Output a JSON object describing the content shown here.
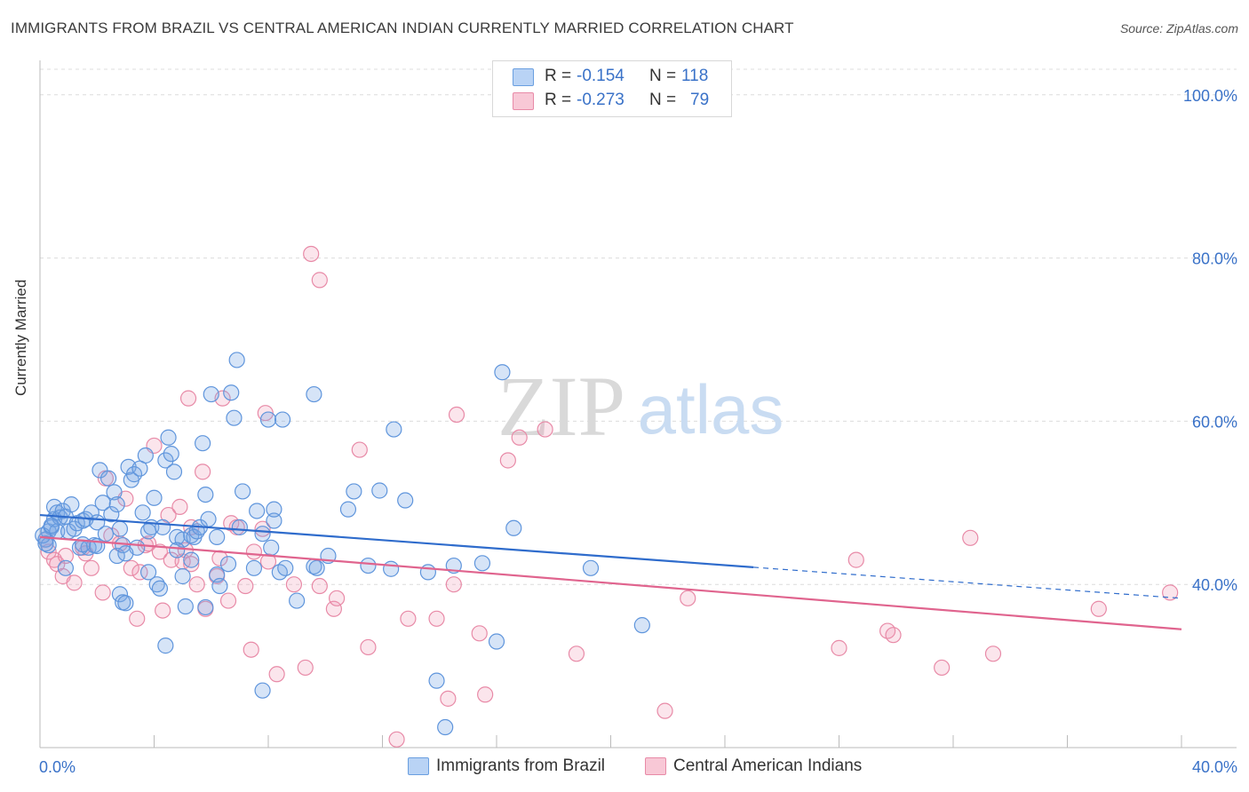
{
  "header": {
    "title": "IMMIGRANTS FROM BRAZIL VS CENTRAL AMERICAN INDIAN CURRENTLY MARRIED CORRELATION CHART",
    "source": "Source: ZipAtlas.com"
  },
  "watermark": {
    "zip": "ZIP",
    "atlas": "atlas"
  },
  "stats_box": {
    "rows": [
      {
        "r_label": "R =",
        "r_value": "-0.154",
        "n_label": "N =",
        "n_value": "118",
        "color": "#6a9fe0"
      },
      {
        "r_label": "R =",
        "r_value": "-0.273",
        "n_label": "N =",
        "n_value": "79",
        "color": "#e88aa7"
      }
    ]
  },
  "legend": {
    "items": [
      {
        "label": "Immigrants from Brazil",
        "color": "#6a9fe0"
      },
      {
        "label": "Central American Indians",
        "color": "#e88aa7"
      }
    ]
  },
  "colors": {
    "blue_point_fill": "rgba(120,165,230,0.30)",
    "blue_point_stroke": "#5f95dc",
    "blue_line": "#2f6ccc",
    "pink_point_fill": "rgba(240,150,180,0.25)",
    "pink_point_stroke": "#e88aa7",
    "pink_line": "#e0648e",
    "tick_label": "#3a72c8",
    "grid": "#dcdcdc"
  },
  "chart_data": {
    "type": "scatter",
    "title": "IMMIGRANTS FROM BRAZIL VS CENTRAL AMERICAN INDIAN CURRENTLY MARRIED CORRELATION CHART",
    "xlabel": "",
    "ylabel": "Currently Married",
    "xlim": [
      0,
      40
    ],
    "ylim": [
      20,
      104
    ],
    "x_tick_labels": [
      "0.0%",
      "40.0%"
    ],
    "y_ticks": [
      40,
      60,
      80,
      100
    ],
    "y_tick_labels": [
      "40.0%",
      "60.0%",
      "80.0%",
      "100.0%"
    ],
    "grid": "horizontal dashed",
    "legend_position": "bottom-center",
    "series": [
      {
        "name": "Immigrants from Brazil",
        "r": -0.154,
        "n": 118,
        "trend": {
          "x_start": 0,
          "y_start": 48.5,
          "x_end_solid": 25,
          "y_end_solid": 42.1,
          "x_end": 40,
          "y_end": 38.3
        },
        "points": [
          [
            0.2,
            45.5
          ],
          [
            0.3,
            46.5
          ],
          [
            0.3,
            44.8
          ],
          [
            0.4,
            47.0
          ],
          [
            0.5,
            49.5
          ],
          [
            0.5,
            48.0
          ],
          [
            0.6,
            48.8
          ],
          [
            0.6,
            46.5
          ],
          [
            0.7,
            48.2
          ],
          [
            0.8,
            49.0
          ],
          [
            0.9,
            48.3
          ],
          [
            0.9,
            42.0
          ],
          [
            1.0,
            46.5
          ],
          [
            1.1,
            49.8
          ],
          [
            1.2,
            46.8
          ],
          [
            1.3,
            47.5
          ],
          [
            1.4,
            44.5
          ],
          [
            1.5,
            47.8
          ],
          [
            1.6,
            48.0
          ],
          [
            1.7,
            44.5
          ],
          [
            1.8,
            48.8
          ],
          [
            1.9,
            44.8
          ],
          [
            2.0,
            47.6
          ],
          [
            2.1,
            54.0
          ],
          [
            2.2,
            50.0
          ],
          [
            2.3,
            46.2
          ],
          [
            2.4,
            53.0
          ],
          [
            2.5,
            48.6
          ],
          [
            2.6,
            51.3
          ],
          [
            2.7,
            43.5
          ],
          [
            2.7,
            49.8
          ],
          [
            2.8,
            38.8
          ],
          [
            2.8,
            46.8
          ],
          [
            2.9,
            44.8
          ],
          [
            2.9,
            37.8
          ],
          [
            3.0,
            37.7
          ],
          [
            3.1,
            54.4
          ],
          [
            3.2,
            52.8
          ],
          [
            3.3,
            53.5
          ],
          [
            3.4,
            44.5
          ],
          [
            3.5,
            54.2
          ],
          [
            3.6,
            48.8
          ],
          [
            3.7,
            55.8
          ],
          [
            3.8,
            46.5
          ],
          [
            3.8,
            41.5
          ],
          [
            3.9,
            47.0
          ],
          [
            4.0,
            50.6
          ],
          [
            4.1,
            40.0
          ],
          [
            4.2,
            39.5
          ],
          [
            4.3,
            47.0
          ],
          [
            4.4,
            55.2
          ],
          [
            4.4,
            32.5
          ],
          [
            4.5,
            58.0
          ],
          [
            4.6,
            56.0
          ],
          [
            4.7,
            53.8
          ],
          [
            4.8,
            45.8
          ],
          [
            5.0,
            45.5
          ],
          [
            5.0,
            41.0
          ],
          [
            5.1,
            37.3
          ],
          [
            5.3,
            46.0
          ],
          [
            5.3,
            43.0
          ],
          [
            5.4,
            45.8
          ],
          [
            5.5,
            46.5
          ],
          [
            5.6,
            47.0
          ],
          [
            5.7,
            57.3
          ],
          [
            5.8,
            51.0
          ],
          [
            5.8,
            37.2
          ],
          [
            5.9,
            48.0
          ],
          [
            6.0,
            63.3
          ],
          [
            6.2,
            45.8
          ],
          [
            6.2,
            41.2
          ],
          [
            6.3,
            39.8
          ],
          [
            6.6,
            42.5
          ],
          [
            6.7,
            63.5
          ],
          [
            6.8,
            60.4
          ],
          [
            6.9,
            67.5
          ],
          [
            7.0,
            47.0
          ],
          [
            7.1,
            51.4
          ],
          [
            7.5,
            42.0
          ],
          [
            7.6,
            49.0
          ],
          [
            7.8,
            46.2
          ],
          [
            7.8,
            27.0
          ],
          [
            8.0,
            60.2
          ],
          [
            8.1,
            44.5
          ],
          [
            8.2,
            47.8
          ],
          [
            8.2,
            49.2
          ],
          [
            8.4,
            41.5
          ],
          [
            8.5,
            60.2
          ],
          [
            8.6,
            42.0
          ],
          [
            9.0,
            38.0
          ],
          [
            9.6,
            42.2
          ],
          [
            9.6,
            63.3
          ],
          [
            9.7,
            42.0
          ],
          [
            10.1,
            43.5
          ],
          [
            10.8,
            49.2
          ],
          [
            11.0,
            51.4
          ],
          [
            11.5,
            42.3
          ],
          [
            11.9,
            51.5
          ],
          [
            12.3,
            41.9
          ],
          [
            12.4,
            59.0
          ],
          [
            12.8,
            50.3
          ],
          [
            13.6,
            41.5
          ],
          [
            13.9,
            28.2
          ],
          [
            14.2,
            22.5
          ],
          [
            14.5,
            42.3
          ],
          [
            15.5,
            42.6
          ],
          [
            16.0,
            33.0
          ],
          [
            16.2,
            66.0
          ],
          [
            16.6,
            46.9
          ],
          [
            19.3,
            42.0
          ],
          [
            21.1,
            35.0
          ],
          [
            0.1,
            46.0
          ],
          [
            0.2,
            45.0
          ],
          [
            0.4,
            47.2
          ],
          [
            1.5,
            44.9
          ],
          [
            2.0,
            44.7
          ],
          [
            3.0,
            43.8
          ],
          [
            4.8,
            44.2
          ]
        ]
      },
      {
        "name": "Central American Indians",
        "r": -0.273,
        "n": 79,
        "trend": {
          "x_start": 0,
          "y_start": 45.8,
          "x_end": 40,
          "y_end": 34.5
        },
        "points": [
          [
            0.2,
            45.5
          ],
          [
            0.3,
            44.0
          ],
          [
            0.5,
            43.0
          ],
          [
            0.6,
            42.5
          ],
          [
            0.8,
            41.0
          ],
          [
            0.9,
            43.5
          ],
          [
            1.2,
            40.2
          ],
          [
            1.5,
            44.5
          ],
          [
            1.6,
            43.8
          ],
          [
            1.8,
            42.0
          ],
          [
            2.2,
            39.0
          ],
          [
            2.3,
            53.0
          ],
          [
            2.5,
            46.0
          ],
          [
            2.8,
            45.0
          ],
          [
            3.0,
            50.5
          ],
          [
            3.2,
            42.0
          ],
          [
            3.4,
            35.8
          ],
          [
            3.5,
            41.5
          ],
          [
            3.7,
            44.8
          ],
          [
            3.8,
            45.0
          ],
          [
            4.0,
            57.0
          ],
          [
            4.2,
            44.0
          ],
          [
            4.3,
            36.8
          ],
          [
            4.5,
            48.5
          ],
          [
            4.6,
            43.0
          ],
          [
            4.9,
            49.5
          ],
          [
            5.0,
            42.8
          ],
          [
            5.1,
            44.2
          ],
          [
            5.2,
            62.8
          ],
          [
            5.3,
            42.5
          ],
          [
            5.3,
            47.0
          ],
          [
            5.5,
            40.0
          ],
          [
            5.7,
            53.8
          ],
          [
            5.8,
            37.0
          ],
          [
            6.2,
            41.0
          ],
          [
            6.3,
            43.2
          ],
          [
            6.4,
            62.8
          ],
          [
            6.6,
            38.0
          ],
          [
            6.7,
            47.5
          ],
          [
            6.9,
            47.0
          ],
          [
            7.2,
            39.8
          ],
          [
            7.4,
            32.0
          ],
          [
            7.5,
            44.0
          ],
          [
            7.8,
            46.8
          ],
          [
            7.9,
            61.0
          ],
          [
            8.0,
            42.8
          ],
          [
            8.3,
            29.0
          ],
          [
            8.9,
            40.0
          ],
          [
            9.3,
            29.8
          ],
          [
            9.5,
            80.5
          ],
          [
            9.8,
            77.3
          ],
          [
            9.8,
            39.8
          ],
          [
            10.3,
            37.0
          ],
          [
            10.4,
            38.3
          ],
          [
            11.2,
            56.5
          ],
          [
            11.5,
            32.3
          ],
          [
            12.5,
            21.0
          ],
          [
            12.9,
            35.8
          ],
          [
            13.9,
            35.8
          ],
          [
            14.3,
            26.0
          ],
          [
            14.5,
            40.0
          ],
          [
            14.6,
            60.8
          ],
          [
            15.4,
            34.0
          ],
          [
            15.6,
            26.5
          ],
          [
            16.4,
            55.2
          ],
          [
            16.8,
            58.0
          ],
          [
            17.7,
            59.0
          ],
          [
            18.8,
            31.5
          ],
          [
            21.9,
            24.5
          ],
          [
            22.7,
            38.3
          ],
          [
            28.0,
            32.2
          ],
          [
            28.6,
            43.0
          ],
          [
            29.7,
            34.3
          ],
          [
            29.9,
            33.8
          ],
          [
            31.6,
            29.8
          ],
          [
            32.6,
            45.7
          ],
          [
            33.4,
            31.5
          ],
          [
            37.1,
            37.0
          ],
          [
            39.6,
            39.0
          ]
        ]
      }
    ]
  }
}
